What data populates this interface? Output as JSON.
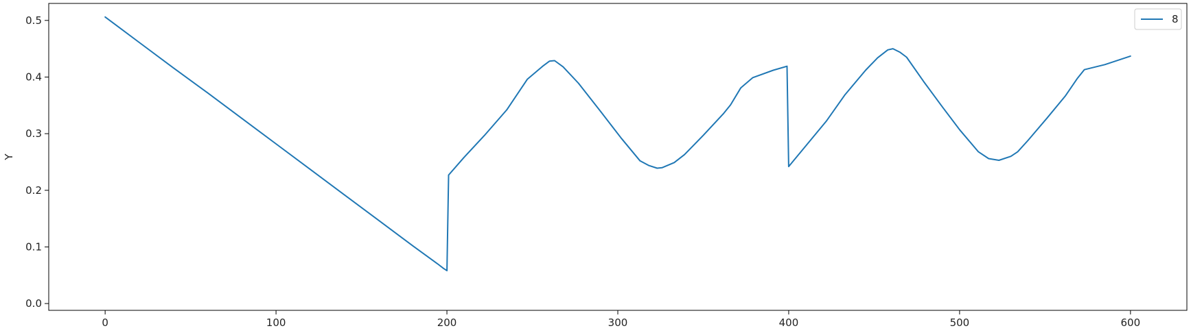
{
  "chart_data": {
    "type": "line",
    "title": "",
    "xlabel": "",
    "ylabel": "Y",
    "xlim": [
      -33,
      633
    ],
    "ylim": [
      -0.012,
      0.53
    ],
    "xticks": [
      0,
      100,
      200,
      300,
      400,
      500,
      600
    ],
    "yticks": [
      0.0,
      0.1,
      0.2,
      0.3,
      0.4,
      0.5
    ],
    "xtick_labels": [
      "0",
      "100",
      "200",
      "300",
      "400",
      "500",
      "600"
    ],
    "ytick_labels": [
      "0.0",
      "0.1",
      "0.2",
      "0.3",
      "0.4",
      "0.5"
    ],
    "grid": false,
    "legend_position": "top-right",
    "series": [
      {
        "name": "8",
        "color": "#1f77b4",
        "x": [
          0,
          8,
          20,
          40,
          60,
          80,
          100,
          120,
          140,
          160,
          180,
          195,
          198,
          200,
          201,
          210,
          222,
          235,
          247,
          256,
          260,
          263,
          268,
          277,
          290,
          302,
          313,
          318,
          323,
          326,
          333,
          339,
          350,
          362,
          366,
          372,
          379,
          391,
          399,
          400,
          411,
          422,
          433,
          445,
          452,
          458,
          461,
          465,
          469,
          479,
          490,
          500,
          511,
          517,
          523,
          530,
          534,
          540,
          551,
          562,
          569,
          573,
          585,
          600
        ],
        "y": [
          0.506,
          0.488,
          0.461,
          0.416,
          0.372,
          0.327,
          0.282,
          0.237,
          0.192,
          0.147,
          0.102,
          0.069,
          0.062,
          0.058,
          0.227,
          0.258,
          0.297,
          0.342,
          0.396,
          0.419,
          0.428,
          0.429,
          0.418,
          0.389,
          0.339,
          0.292,
          0.252,
          0.244,
          0.239,
          0.24,
          0.249,
          0.263,
          0.297,
          0.336,
          0.351,
          0.381,
          0.399,
          0.412,
          0.419,
          0.242,
          0.282,
          0.322,
          0.369,
          0.412,
          0.434,
          0.448,
          0.45,
          0.444,
          0.435,
          0.392,
          0.347,
          0.307,
          0.268,
          0.256,
          0.253,
          0.26,
          0.268,
          0.288,
          0.327,
          0.367,
          0.398,
          0.413,
          0.422,
          0.437
        ]
      }
    ]
  }
}
